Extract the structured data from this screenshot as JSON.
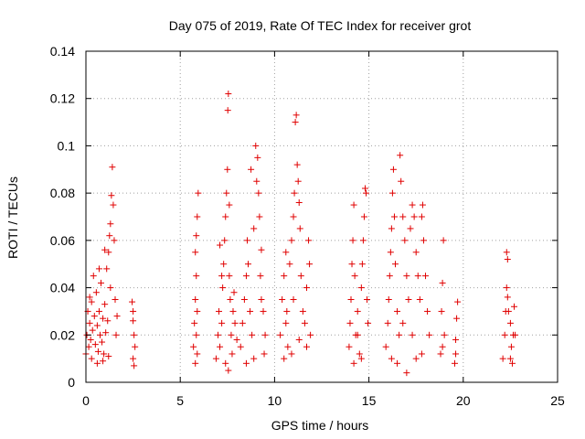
{
  "chart_data": {
    "type": "scatter",
    "title": "Day 075 of 2019, Rate Of TEC Index for receiver grot",
    "xlabel": "GPS time / hours",
    "ylabel": "ROTI / TECUs",
    "xlim": [
      0,
      25
    ],
    "ylim": [
      0,
      0.14
    ],
    "xticks": [
      0,
      5,
      10,
      15,
      20,
      25
    ],
    "xtick_labels": [
      "0",
      "5",
      "10",
      "15",
      "20",
      "25"
    ],
    "yticks": [
      0,
      0.02,
      0.04,
      0.06,
      0.08,
      0.1,
      0.12,
      0.14
    ],
    "ytick_labels": [
      "0",
      "0.02",
      "0.04",
      "0.06",
      "0.08",
      "0.1",
      "0.12",
      "0.14"
    ],
    "grid": true,
    "marker": "plus",
    "color": "#e00000",
    "series": [
      {
        "points": [
          [
            0.0,
            0.012
          ],
          [
            0.05,
            0.02
          ],
          [
            0.1,
            0.03
          ],
          [
            0.15,
            0.015
          ],
          [
            0.2,
            0.025
          ],
          [
            0.25,
            0.018
          ],
          [
            0.3,
            0.034
          ],
          [
            0.35,
            0.022
          ],
          [
            0.4,
            0.045
          ],
          [
            0.45,
            0.028
          ],
          [
            0.5,
            0.016
          ],
          [
            0.55,
            0.038
          ],
          [
            0.6,
            0.024
          ],
          [
            0.65,
            0.013
          ],
          [
            0.7,
            0.03
          ],
          [
            0.75,
            0.02
          ],
          [
            0.8,
            0.042
          ],
          [
            0.85,
            0.017
          ],
          [
            0.9,
            0.027
          ],
          [
            0.95,
            0.012
          ],
          [
            1.0,
            0.033
          ],
          [
            1.05,
            0.021
          ],
          [
            1.1,
            0.048
          ],
          [
            1.15,
            0.026
          ],
          [
            1.2,
            0.055
          ],
          [
            1.25,
            0.062
          ],
          [
            1.3,
            0.067
          ],
          [
            1.35,
            0.079
          ],
          [
            1.4,
            0.091
          ],
          [
            1.45,
            0.075
          ],
          [
            1.5,
            0.06
          ],
          [
            1.55,
            0.035
          ],
          [
            1.6,
            0.02
          ],
          [
            1.65,
            0.028
          ],
          [
            0.3,
            0.01
          ],
          [
            0.6,
            0.008
          ],
          [
            0.9,
            0.009
          ],
          [
            1.2,
            0.011
          ],
          [
            0.2,
            0.036
          ],
          [
            0.7,
            0.048
          ],
          [
            1.0,
            0.056
          ],
          [
            1.3,
            0.04
          ],
          [
            2.45,
            0.034
          ],
          [
            2.5,
            0.026
          ],
          [
            2.55,
            0.02
          ],
          [
            2.6,
            0.015
          ],
          [
            2.5,
            0.01
          ],
          [
            2.55,
            0.007
          ],
          [
            2.5,
            0.03
          ],
          [
            5.7,
            0.015
          ],
          [
            5.75,
            0.025
          ],
          [
            5.8,
            0.035
          ],
          [
            5.85,
            0.045
          ],
          [
            5.8,
            0.055
          ],
          [
            5.85,
            0.062
          ],
          [
            5.9,
            0.07
          ],
          [
            5.95,
            0.08
          ],
          [
            5.9,
            0.012
          ],
          [
            5.85,
            0.02
          ],
          [
            5.8,
            0.008
          ],
          [
            5.9,
            0.03
          ],
          [
            6.9,
            0.01
          ],
          [
            7.0,
            0.02
          ],
          [
            7.05,
            0.03
          ],
          [
            7.1,
            0.015
          ],
          [
            7.2,
            0.025
          ],
          [
            7.25,
            0.04
          ],
          [
            7.3,
            0.05
          ],
          [
            7.35,
            0.06
          ],
          [
            7.4,
            0.07
          ],
          [
            7.45,
            0.08
          ],
          [
            7.5,
            0.09
          ],
          [
            7.52,
            0.115
          ],
          [
            7.55,
            0.122
          ],
          [
            7.6,
            0.045
          ],
          [
            7.65,
            0.035
          ],
          [
            7.7,
            0.02
          ],
          [
            7.75,
            0.012
          ],
          [
            7.8,
            0.03
          ],
          [
            7.85,
            0.038
          ],
          [
            7.9,
            0.025
          ],
          [
            8.0,
            0.018
          ],
          [
            7.55,
            0.005
          ],
          [
            7.4,
            0.008
          ],
          [
            7.2,
            0.045
          ],
          [
            7.1,
            0.058
          ],
          [
            7.6,
            0.075
          ],
          [
            8.2,
            0.015
          ],
          [
            8.3,
            0.025
          ],
          [
            8.4,
            0.035
          ],
          [
            8.5,
            0.045
          ],
          [
            8.55,
            0.06
          ],
          [
            8.6,
            0.05
          ],
          [
            8.7,
            0.03
          ],
          [
            8.75,
            0.09
          ],
          [
            8.8,
            0.02
          ],
          [
            8.9,
            0.065
          ],
          [
            9.0,
            0.1
          ],
          [
            9.05,
            0.085
          ],
          [
            9.1,
            0.095
          ],
          [
            9.15,
            0.08
          ],
          [
            9.2,
            0.07
          ],
          [
            9.25,
            0.045
          ],
          [
            9.3,
            0.035
          ],
          [
            9.4,
            0.03
          ],
          [
            9.5,
            0.02
          ],
          [
            9.45,
            0.012
          ],
          [
            8.5,
            0.008
          ],
          [
            8.9,
            0.01
          ],
          [
            9.3,
            0.056
          ],
          [
            10.3,
            0.02
          ],
          [
            10.4,
            0.035
          ],
          [
            10.5,
            0.045
          ],
          [
            10.6,
            0.055
          ],
          [
            10.65,
            0.03
          ],
          [
            10.7,
            0.015
          ],
          [
            10.8,
            0.05
          ],
          [
            10.9,
            0.06
          ],
          [
            11.0,
            0.07
          ],
          [
            11.05,
            0.08
          ],
          [
            11.1,
            0.11
          ],
          [
            11.15,
            0.113
          ],
          [
            11.2,
            0.092
          ],
          [
            11.25,
            0.085
          ],
          [
            11.3,
            0.076
          ],
          [
            11.35,
            0.065
          ],
          [
            11.4,
            0.045
          ],
          [
            11.5,
            0.03
          ],
          [
            11.6,
            0.025
          ],
          [
            11.7,
            0.04
          ],
          [
            11.8,
            0.06
          ],
          [
            11.85,
            0.05
          ],
          [
            11.9,
            0.02
          ],
          [
            10.5,
            0.01
          ],
          [
            10.9,
            0.012
          ],
          [
            11.3,
            0.018
          ],
          [
            11.7,
            0.015
          ],
          [
            10.6,
            0.025
          ],
          [
            11.0,
            0.035
          ],
          [
            13.95,
            0.015
          ],
          [
            14.0,
            0.025
          ],
          [
            14.05,
            0.035
          ],
          [
            14.1,
            0.05
          ],
          [
            14.15,
            0.06
          ],
          [
            14.2,
            0.075
          ],
          [
            14.25,
            0.045
          ],
          [
            14.3,
            0.02
          ],
          [
            14.4,
            0.03
          ],
          [
            14.5,
            0.012
          ],
          [
            14.6,
            0.04
          ],
          [
            14.65,
            0.05
          ],
          [
            14.7,
            0.06
          ],
          [
            14.75,
            0.07
          ],
          [
            14.8,
            0.082
          ],
          [
            14.85,
            0.08
          ],
          [
            14.9,
            0.035
          ],
          [
            14.95,
            0.025
          ],
          [
            14.2,
            0.008
          ],
          [
            14.6,
            0.01
          ],
          [
            14.4,
            0.02
          ],
          [
            15.9,
            0.015
          ],
          [
            16.0,
            0.025
          ],
          [
            16.05,
            0.035
          ],
          [
            16.1,
            0.045
          ],
          [
            16.15,
            0.055
          ],
          [
            16.2,
            0.065
          ],
          [
            16.25,
            0.08
          ],
          [
            16.3,
            0.09
          ],
          [
            16.35,
            0.07
          ],
          [
            16.4,
            0.05
          ],
          [
            16.5,
            0.03
          ],
          [
            16.6,
            0.02
          ],
          [
            16.65,
            0.096
          ],
          [
            16.7,
            0.085
          ],
          [
            16.8,
            0.07
          ],
          [
            16.9,
            0.06
          ],
          [
            17.0,
            0.045
          ],
          [
            17.1,
            0.035
          ],
          [
            17.2,
            0.065
          ],
          [
            17.3,
            0.075
          ],
          [
            17.4,
            0.07
          ],
          [
            17.5,
            0.055
          ],
          [
            17.6,
            0.045
          ],
          [
            17.7,
            0.035
          ],
          [
            17.8,
            0.07
          ],
          [
            17.85,
            0.075
          ],
          [
            17.9,
            0.06
          ],
          [
            18.0,
            0.045
          ],
          [
            18.1,
            0.03
          ],
          [
            18.2,
            0.02
          ],
          [
            17.0,
            0.004
          ],
          [
            16.5,
            0.008
          ],
          [
            17.5,
            0.01
          ],
          [
            16.2,
            0.01
          ],
          [
            17.8,
            0.012
          ],
          [
            16.8,
            0.025
          ],
          [
            17.3,
            0.02
          ],
          [
            18.8,
            0.012
          ],
          [
            18.85,
            0.03
          ],
          [
            18.9,
            0.042
          ],
          [
            18.95,
            0.06
          ],
          [
            19.0,
            0.02
          ],
          [
            18.9,
            0.015
          ],
          [
            19.55,
            0.008
          ],
          [
            19.6,
            0.018
          ],
          [
            19.65,
            0.027
          ],
          [
            19.7,
            0.034
          ],
          [
            19.6,
            0.012
          ],
          [
            22.1,
            0.01
          ],
          [
            22.2,
            0.02
          ],
          [
            22.25,
            0.03
          ],
          [
            22.3,
            0.04
          ],
          [
            22.35,
            0.052
          ],
          [
            22.3,
            0.055
          ],
          [
            22.4,
            0.03
          ],
          [
            22.5,
            0.025
          ],
          [
            22.55,
            0.015
          ],
          [
            22.6,
            0.008
          ],
          [
            22.65,
            0.02
          ],
          [
            22.7,
            0.032
          ],
          [
            22.75,
            0.02
          ],
          [
            22.35,
            0.036
          ],
          [
            22.5,
            0.01
          ]
        ]
      }
    ]
  }
}
